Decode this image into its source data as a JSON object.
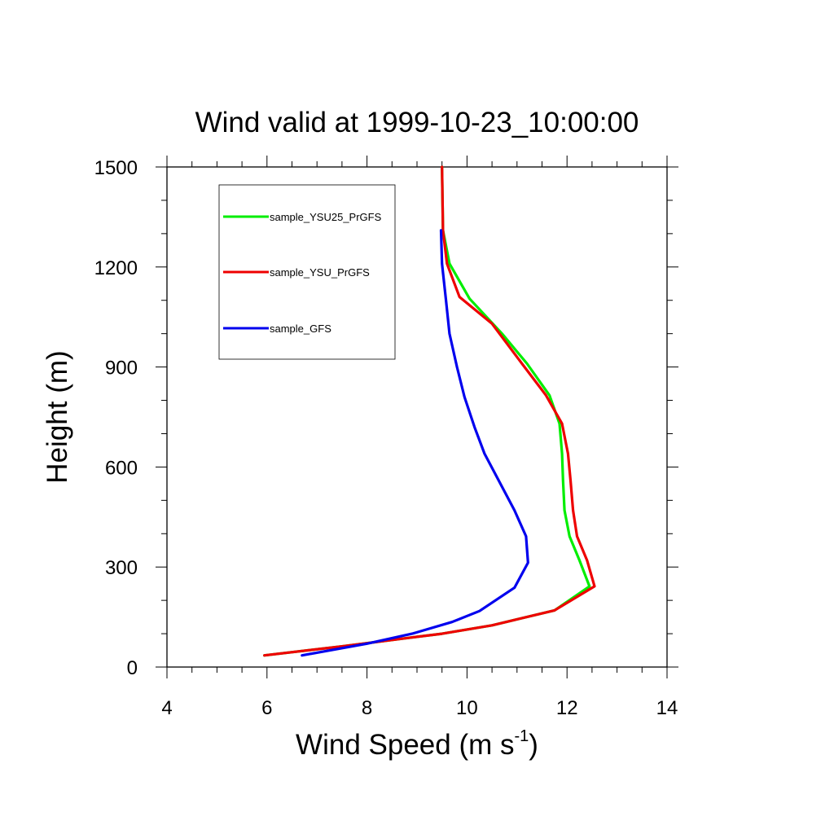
{
  "chart_data": {
    "type": "line",
    "title": "Wind valid at 1999-10-23_10:00:00",
    "xlabel": "Wind Speed (m s",
    "xlabel_sup": "-1",
    "xlabel_end": ")",
    "ylabel": "Height (m)",
    "xlim": [
      4,
      14
    ],
    "ylim": [
      0,
      1500
    ],
    "xticks": [
      4,
      6,
      8,
      10,
      12,
      14
    ],
    "yticks": [
      0,
      300,
      600,
      900,
      1200,
      1500
    ],
    "grid": false,
    "legend_position": "top-left",
    "series": [
      {
        "name": "sample_YSU25_PrGFS",
        "color": "#00ee00",
        "points": [
          [
            5.95,
            35
          ],
          [
            7.5,
            62
          ],
          [
            8.8,
            87
          ],
          [
            9.5,
            100
          ],
          [
            10.5,
            125
          ],
          [
            11.75,
            170
          ],
          [
            12.45,
            242
          ],
          [
            12.25,
            320
          ],
          [
            12.05,
            392
          ],
          [
            11.95,
            470
          ],
          [
            11.92,
            560
          ],
          [
            11.9,
            640
          ],
          [
            11.85,
            730
          ],
          [
            11.65,
            815
          ],
          [
            11.2,
            910
          ],
          [
            10.7,
            1000
          ],
          [
            10.05,
            1105
          ],
          [
            9.65,
            1210
          ],
          [
            9.52,
            1310
          ],
          [
            9.5,
            1500
          ]
        ]
      },
      {
        "name": "sample_YSU_PrGFS",
        "color": "#ee0000",
        "points": [
          [
            5.95,
            35
          ],
          [
            7.5,
            62
          ],
          [
            8.8,
            87
          ],
          [
            9.5,
            100
          ],
          [
            10.5,
            125
          ],
          [
            11.75,
            170
          ],
          [
            12.55,
            242
          ],
          [
            12.4,
            320
          ],
          [
            12.2,
            392
          ],
          [
            12.12,
            470
          ],
          [
            12.07,
            560
          ],
          [
            12.02,
            640
          ],
          [
            11.9,
            730
          ],
          [
            11.58,
            815
          ],
          [
            11.1,
            910
          ],
          [
            10.5,
            1030
          ],
          [
            9.85,
            1110
          ],
          [
            9.6,
            1210
          ],
          [
            9.52,
            1310
          ],
          [
            9.5,
            1500
          ]
        ]
      },
      {
        "name": "sample_GFS",
        "color": "#0000ee",
        "points": [
          [
            6.7,
            35
          ],
          [
            8.0,
            70
          ],
          [
            8.9,
            100
          ],
          [
            9.7,
            135
          ],
          [
            10.25,
            168
          ],
          [
            10.95,
            238
          ],
          [
            11.22,
            313
          ],
          [
            11.18,
            392
          ],
          [
            10.95,
            470
          ],
          [
            10.35,
            640
          ],
          [
            10.15,
            720
          ],
          [
            9.95,
            810
          ],
          [
            9.8,
            900
          ],
          [
            9.65,
            1000
          ],
          [
            9.58,
            1100
          ],
          [
            9.5,
            1210
          ],
          [
            9.48,
            1310
          ]
        ]
      }
    ]
  }
}
